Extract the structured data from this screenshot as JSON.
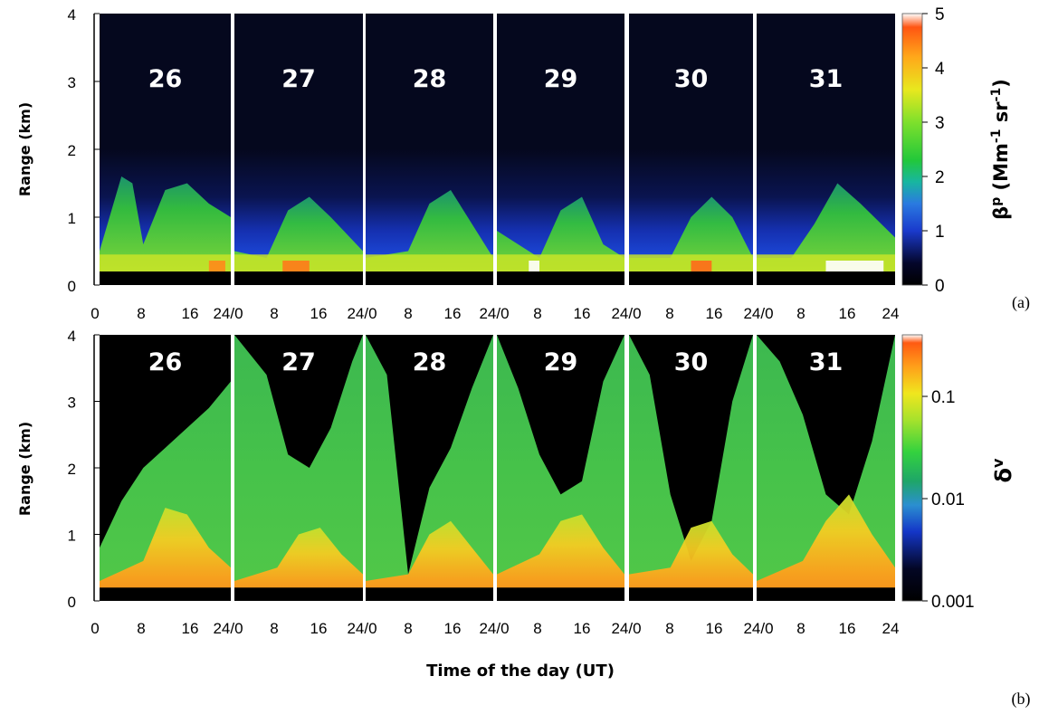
{
  "chart_data": [
    {
      "type": "heatmap",
      "panel_label": "(a)",
      "ylabel": "Range (km)",
      "yticks": [
        "0",
        "1",
        "2",
        "3",
        "4"
      ],
      "ylim": [
        0,
        4
      ],
      "xticks": [
        "0",
        "8",
        "16",
        "24/0",
        "8",
        "16",
        "24/0",
        "8",
        "16",
        "24/0",
        "8",
        "16",
        "24/0",
        "8",
        "16",
        "24/0",
        "8",
        "16",
        "24"
      ],
      "xlim_hours_per_day": [
        0,
        24
      ],
      "days": [
        "26",
        "27",
        "28",
        "29",
        "30",
        "31"
      ],
      "colorbar": {
        "label_main": "β",
        "label_sup": "p",
        "label_units_prefix": " (Mm",
        "label_units_exp1": "-1",
        "label_units_mid": " sr",
        "label_units_exp2": "-1",
        "label_units_suffix": ")",
        "ticks": [
          "0",
          "1",
          "2",
          "3",
          "4",
          "5"
        ],
        "range": [
          0,
          5
        ],
        "scale": "linear"
      },
      "background_color": "#05081e",
      "ground_mask_top_km": 0.2,
      "aerosol_layer_top_km_by_day": [
        [
          [
            0,
            0.5
          ],
          [
            4,
            1.6
          ],
          [
            6,
            1.5
          ],
          [
            8,
            0.6
          ],
          [
            12,
            1.4
          ],
          [
            16,
            1.5
          ],
          [
            20,
            1.2
          ],
          [
            24,
            1.0
          ]
        ],
        [
          [
            0,
            0.5
          ],
          [
            6,
            0.4
          ],
          [
            10,
            1.1
          ],
          [
            14,
            1.3
          ],
          [
            18,
            1.0
          ],
          [
            24,
            0.5
          ]
        ],
        [
          [
            0,
            0.4
          ],
          [
            8,
            0.5
          ],
          [
            12,
            1.2
          ],
          [
            16,
            1.4
          ],
          [
            20,
            0.9
          ],
          [
            24,
            0.4
          ]
        ],
        [
          [
            0,
            0.8
          ],
          [
            4,
            0.6
          ],
          [
            8,
            0.4
          ],
          [
            12,
            1.1
          ],
          [
            16,
            1.3
          ],
          [
            20,
            0.6
          ],
          [
            24,
            0.4
          ]
        ],
        [
          [
            0,
            0.4
          ],
          [
            8,
            0.4
          ],
          [
            12,
            1.0
          ],
          [
            16,
            1.3
          ],
          [
            20,
            1.0
          ],
          [
            24,
            0.4
          ]
        ],
        [
          [
            0,
            0.4
          ],
          [
            6,
            0.4
          ],
          [
            10,
            0.9
          ],
          [
            14,
            1.5
          ],
          [
            18,
            1.2
          ],
          [
            24,
            0.7
          ]
        ]
      ],
      "blue_haze_top_km": 2.0
    },
    {
      "type": "heatmap",
      "panel_label": "(b)",
      "ylabel": "Range (km)",
      "xlabel": "Time of the day (UT)",
      "yticks": [
        "0",
        "1",
        "2",
        "3",
        "4"
      ],
      "ylim": [
        0,
        4
      ],
      "xticks": [
        "0",
        "8",
        "16",
        "24/0",
        "8",
        "16",
        "24/0",
        "8",
        "16",
        "24/0",
        "8",
        "16",
        "24/0",
        "8",
        "16",
        "24/0",
        "8",
        "16",
        "24"
      ],
      "days": [
        "26",
        "27",
        "28",
        "29",
        "30",
        "31"
      ],
      "colorbar": {
        "label_main": "δ",
        "label_sup": "v",
        "ticks": [
          "0.001",
          "0.01",
          "0.1"
        ],
        "range": [
          0.001,
          0.4
        ],
        "scale": "log"
      },
      "ground_mask_top_km": 0.2,
      "black_noise_region_bottom_km_by_day": [
        [
          [
            0,
            0.8
          ],
          [
            4,
            1.5
          ],
          [
            8,
            2.0
          ],
          [
            12,
            2.3
          ],
          [
            16,
            2.6
          ],
          [
            20,
            2.9
          ],
          [
            24,
            3.3
          ]
        ],
        [
          [
            0,
            4.0
          ],
          [
            6,
            3.4
          ],
          [
            10,
            2.2
          ],
          [
            14,
            2.0
          ],
          [
            18,
            2.6
          ],
          [
            22,
            3.6
          ],
          [
            24,
            4.0
          ]
        ],
        [
          [
            0,
            4.0
          ],
          [
            4,
            3.4
          ],
          [
            8,
            0.4
          ],
          [
            12,
            1.7
          ],
          [
            16,
            2.3
          ],
          [
            20,
            3.2
          ],
          [
            24,
            4.0
          ]
        ],
        [
          [
            0,
            4.0
          ],
          [
            4,
            3.2
          ],
          [
            8,
            2.2
          ],
          [
            12,
            1.6
          ],
          [
            16,
            1.8
          ],
          [
            20,
            3.3
          ],
          [
            24,
            4.0
          ]
        ],
        [
          [
            0,
            4.0
          ],
          [
            4,
            3.4
          ],
          [
            8,
            1.6
          ],
          [
            12,
            0.6
          ],
          [
            16,
            1.2
          ],
          [
            20,
            3.0
          ],
          [
            24,
            4.0
          ]
        ],
        [
          [
            0,
            4.0
          ],
          [
            4,
            3.6
          ],
          [
            8,
            2.8
          ],
          [
            12,
            1.6
          ],
          [
            16,
            1.3
          ],
          [
            20,
            2.4
          ],
          [
            24,
            4.0
          ]
        ]
      ],
      "orange_dust_top_km_by_day": [
        [
          [
            0,
            0.3
          ],
          [
            8,
            0.6
          ],
          [
            12,
            1.4
          ],
          [
            16,
            1.3
          ],
          [
            20,
            0.8
          ],
          [
            24,
            0.5
          ]
        ],
        [
          [
            0,
            0.3
          ],
          [
            8,
            0.5
          ],
          [
            12,
            1.0
          ],
          [
            16,
            1.1
          ],
          [
            20,
            0.7
          ],
          [
            24,
            0.4
          ]
        ],
        [
          [
            0,
            0.3
          ],
          [
            8,
            0.4
          ],
          [
            12,
            1.0
          ],
          [
            16,
            1.2
          ],
          [
            20,
            0.8
          ],
          [
            24,
            0.4
          ]
        ],
        [
          [
            0,
            0.4
          ],
          [
            8,
            0.7
          ],
          [
            12,
            1.2
          ],
          [
            16,
            1.3
          ],
          [
            20,
            0.8
          ],
          [
            24,
            0.4
          ]
        ],
        [
          [
            0,
            0.4
          ],
          [
            8,
            0.5
          ],
          [
            12,
            1.1
          ],
          [
            16,
            1.2
          ],
          [
            20,
            0.7
          ],
          [
            24,
            0.4
          ]
        ],
        [
          [
            0,
            0.3
          ],
          [
            8,
            0.6
          ],
          [
            12,
            1.2
          ],
          [
            16,
            1.6
          ],
          [
            20,
            1.0
          ],
          [
            24,
            0.5
          ]
        ]
      ]
    }
  ]
}
